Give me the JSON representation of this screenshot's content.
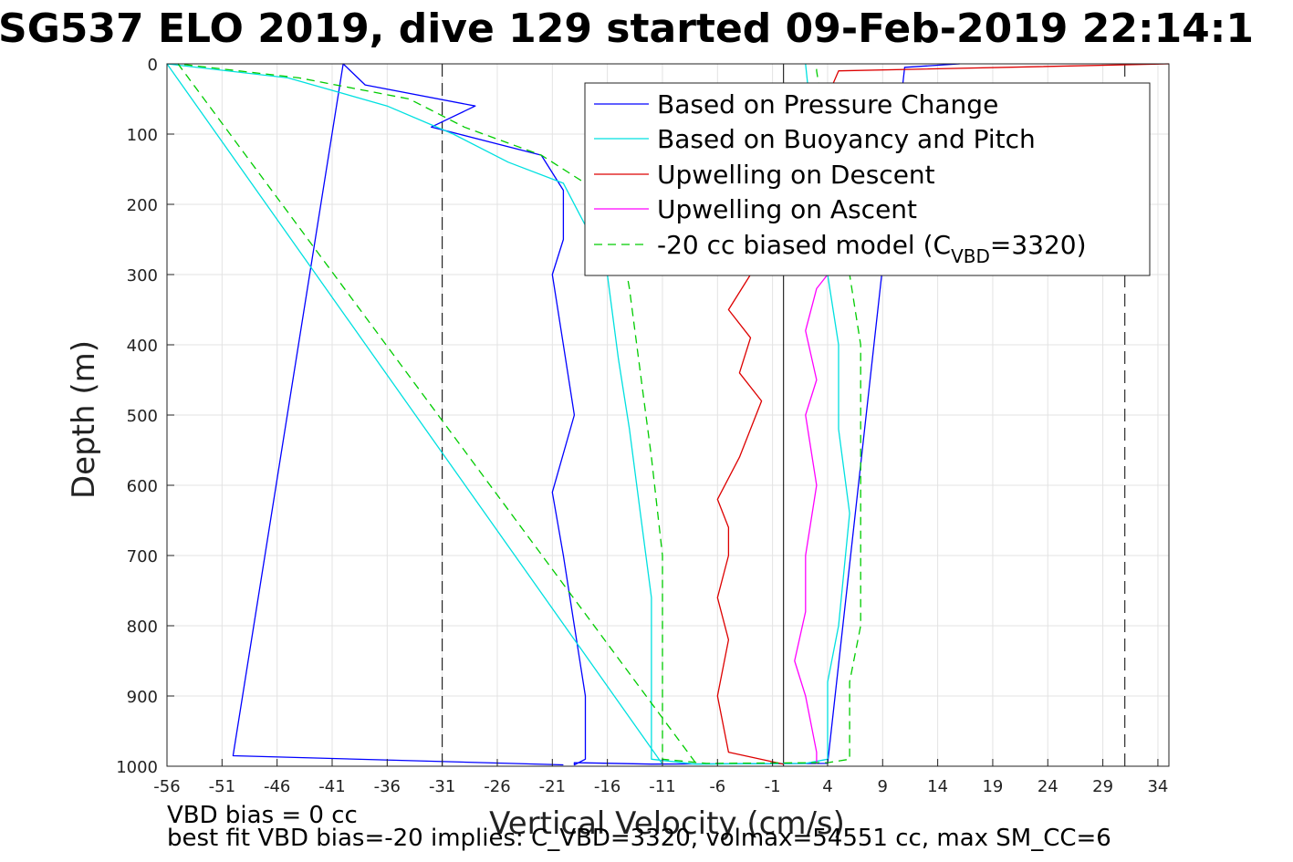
{
  "chart_data": {
    "type": "line",
    "title": "SG537 ELO 2019, dive 129 started 09-Feb-2019 22:14:1",
    "xlabel": "Vertical Velocity (cm/s)",
    "ylabel": "Depth (m)",
    "xlim": [
      -56,
      35
    ],
    "ylim": [
      0,
      1000
    ],
    "y_reversed": true,
    "grid": true,
    "legend_position": "top-right",
    "x_ticks": [
      -56,
      -51,
      -46,
      -41,
      -36,
      -31,
      -26,
      -21,
      -16,
      -11,
      -6,
      -1,
      4,
      9,
      14,
      19,
      24,
      29,
      34
    ],
    "y_ticks": [
      0,
      100,
      200,
      300,
      400,
      500,
      600,
      700,
      800,
      900,
      1000
    ],
    "reference_lines": [
      {
        "x": -31,
        "style": "dashed",
        "color": "#000000"
      },
      {
        "x": 31,
        "style": "dashed",
        "color": "#000000"
      },
      {
        "x": 0,
        "style": "solid",
        "color": "#000000"
      }
    ],
    "series": [
      {
        "name": "Based on Pressure Change",
        "color": "#0000ff",
        "style": "solid",
        "x": [
          -20,
          -50,
          -40,
          -38,
          -28,
          -32,
          -22,
          -20,
          -20,
          -21,
          -20,
          -19,
          -21,
          -20,
          -19,
          -18,
          -18,
          -19,
          -19,
          -12,
          4,
          11,
          16
        ],
        "y": [
          998,
          985,
          0,
          30,
          60,
          90,
          130,
          180,
          250,
          300,
          400,
          500,
          610,
          700,
          800,
          900,
          990,
          998,
          995,
          997,
          996,
          5,
          0
        ]
      },
      {
        "name": "Based on Buoyancy and Pitch",
        "color": "#00e0e0",
        "style": "solid",
        "x": [
          -11,
          -56,
          -45,
          -36,
          -30,
          -25,
          -20,
          -18,
          -16,
          -15,
          -14,
          -13,
          -12,
          -12,
          -8,
          2,
          4,
          4,
          5,
          6,
          5,
          5,
          4,
          2
        ],
        "y": [
          997,
          0,
          20,
          60,
          100,
          140,
          170,
          230,
          300,
          420,
          520,
          640,
          760,
          990,
          997,
          996,
          990,
          880,
          800,
          640,
          520,
          400,
          300,
          0
        ]
      },
      {
        "name": "Upwelling on Descent",
        "color": "#dd0000",
        "style": "solid",
        "x": [
          35,
          5,
          -3,
          -5,
          -3,
          -4,
          -2,
          -4,
          -6,
          -5,
          -5,
          -6,
          -5,
          -6,
          -5,
          0
        ],
        "y": [
          0,
          10,
          300,
          350,
          390,
          440,
          480,
          560,
          620,
          660,
          700,
          760,
          820,
          900,
          980,
          997
        ]
      },
      {
        "name": "Upwelling on Ascent",
        "color": "#ff00ff",
        "style": "solid",
        "x": [
          3,
          3,
          2,
          1,
          2,
          2,
          3,
          2,
          3,
          2,
          3,
          4
        ],
        "y": [
          997,
          980,
          900,
          850,
          780,
          700,
          600,
          500,
          450,
          380,
          320,
          300
        ]
      },
      {
        "name": "-20 cc biased model (C_VBD=3320)",
        "color": "#00cc00",
        "style": "dashed",
        "x": [
          -8,
          -55,
          -44,
          -34,
          -29,
          -22,
          -18,
          -15,
          -14,
          -13,
          -12,
          -11,
          -11,
          -7,
          4,
          6,
          6,
          7,
          7,
          7,
          7,
          6,
          3,
          3
        ],
        "y": [
          995,
          0,
          20,
          50,
          90,
          130,
          170,
          230,
          320,
          440,
          560,
          700,
          990,
          996,
          995,
          990,
          880,
          800,
          640,
          500,
          400,
          300,
          10,
          0
        ]
      }
    ],
    "legend": {
      "entries": [
        {
          "label": "Based on Pressure Change",
          "color": "#0000ff",
          "style": "solid"
        },
        {
          "label": "Based on Buoyancy and Pitch",
          "color": "#00e0e0",
          "style": "solid"
        },
        {
          "label": "Upwelling on Descent",
          "color": "#dd0000",
          "style": "solid"
        },
        {
          "label": "Upwelling on Ascent",
          "color": "#ff00ff",
          "style": "solid"
        },
        {
          "label_prefix": "-20 cc biased model (C",
          "label_sub": "VBD",
          "label_suffix": "=3320)",
          "color": "#00cc00",
          "style": "dashed"
        }
      ]
    },
    "annotations": [
      "VBD bias = 0 cc",
      "best fit VBD bias=-20 implies: C_VBD=3320, volmax=54551 cc, max SM_CC=6"
    ]
  }
}
